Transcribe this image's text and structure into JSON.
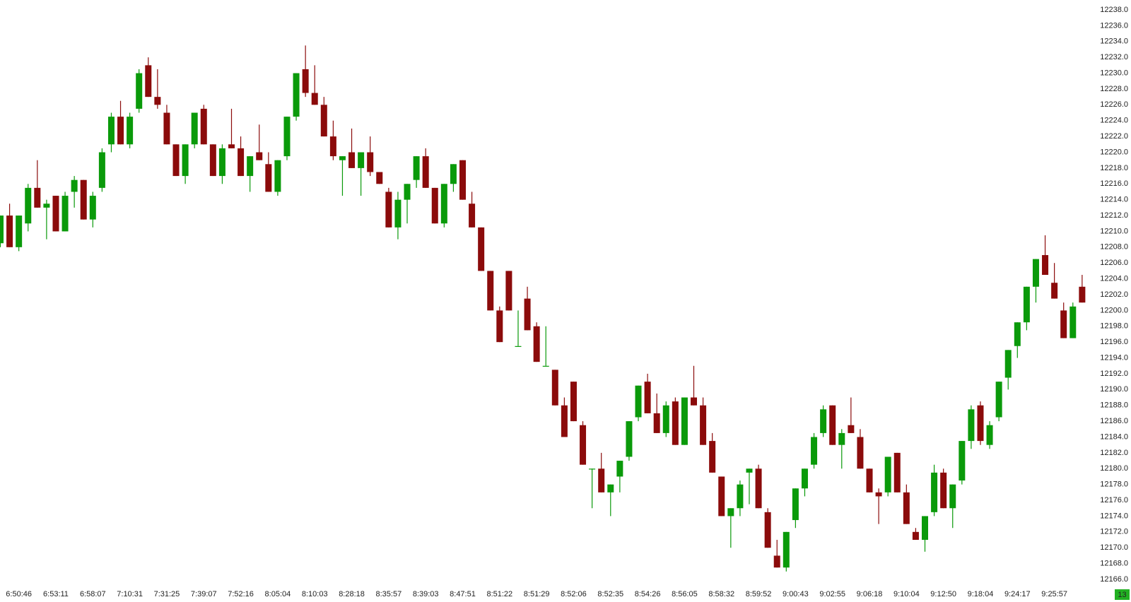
{
  "chart_data": {
    "type": "candlestick",
    "up_color": "#0a9a0a",
    "down_color": "#8b0b0b",
    "badge": "13",
    "badge_color": "#22b022",
    "categories": [
      null,
      null,
      "6:50:46",
      null,
      null,
      null,
      "6:53:11",
      null,
      null,
      null,
      "6:58:07",
      null,
      null,
      null,
      "7:10:31",
      null,
      null,
      null,
      "7:31:25",
      null,
      null,
      null,
      "7:39:07",
      null,
      null,
      null,
      "7:52:16",
      null,
      null,
      null,
      "8:05:04",
      null,
      null,
      null,
      "8:10:03",
      null,
      null,
      null,
      "8:28:18",
      null,
      null,
      null,
      "8:35:57",
      null,
      null,
      null,
      "8:39:03",
      null,
      null,
      null,
      "8:47:51",
      null,
      null,
      null,
      "8:51:22",
      null,
      null,
      null,
      "8:51:29",
      null,
      null,
      null,
      "8:52:06",
      null,
      null,
      null,
      "8:52:35",
      null,
      null,
      null,
      "8:54:26",
      null,
      null,
      null,
      "8:56:05",
      null,
      null,
      null,
      "8:58:32",
      null,
      null,
      null,
      "8:59:52",
      null,
      null,
      null,
      "9:00:43",
      null,
      null,
      null,
      "9:02:55",
      null,
      null,
      null,
      "9:06:18",
      null,
      null,
      null,
      "9:10:04",
      null,
      null,
      null,
      "9:12:50",
      null,
      null,
      null,
      "9:18:04",
      null,
      null,
      null,
      "9:24:17",
      null,
      null,
      null,
      "9:25:57",
      null,
      null,
      null
    ],
    "open": [
      12208.5,
      12212,
      12208,
      12211,
      12215.5,
      12213,
      12214.5,
      12210,
      12215,
      12216.5,
      12211.5,
      12215.5,
      12221,
      12224.5,
      12221,
      12225.5,
      12231,
      12227,
      12225,
      12221,
      12217,
      12221,
      12225.5,
      12221,
      12217,
      12221,
      12220.5,
      12217,
      12220,
      12218.5,
      12215,
      12219.5,
      12224.5,
      12230.5,
      12227.5,
      12226,
      12222,
      12219,
      12220,
      12218,
      12220,
      12217.5,
      12215,
      12210.5,
      12214,
      12216.5,
      12219.5,
      12215.5,
      12211,
      12216,
      12219,
      12213.5,
      12210.5,
      12205,
      12200,
      12205,
      12195.5,
      12201.5,
      12198,
      12193,
      12192.5,
      12188,
      12191,
      12185.5,
      12180,
      12180,
      12177,
      12179,
      12181.5,
      12186.5,
      12191,
      12187,
      12184.5,
      12188.5,
      12183,
      12189,
      12188,
      12183.5,
      12179,
      12174,
      12175,
      12179.5,
      12180,
      12174.5,
      12169,
      12167.5,
      12173.5,
      12177.5,
      12180.5,
      12184.5,
      12188,
      12183,
      12185.5,
      12184,
      12180,
      12177,
      12177,
      12182,
      12177,
      12172,
      12171,
      12174.5,
      12179.5,
      12175,
      12178.5,
      12183.5,
      12188,
      12183,
      12186.5,
      12191.5,
      12195.5,
      12198.5,
      12203,
      12207,
      12203.5,
      12200,
      12196.5,
      12203
    ],
    "high": [
      12212,
      12213.5,
      12212,
      12216,
      12219,
      12214,
      12214.5,
      12215,
      12217,
      12216.5,
      12215,
      12220.5,
      12225,
      12226.5,
      12225,
      12230.5,
      12232,
      12230.5,
      12226,
      12221,
      12221,
      12225,
      12226,
      12221,
      12221,
      12225.5,
      12222,
      12219.5,
      12223.5,
      12220,
      12219,
      12224.5,
      12230,
      12233.5,
      12231,
      12227,
      12224,
      12219.5,
      12223,
      12220,
      12222,
      12217.5,
      12215.5,
      12215,
      12216,
      12219.5,
      12220.5,
      12215.5,
      12216,
      12218.5,
      12219,
      12215,
      12210.5,
      12205,
      12200.5,
      12205,
      12200,
      12203,
      12198.5,
      12198,
      12192.5,
      12189,
      12191,
      12186,
      12180,
      12182,
      12178,
      12181,
      12186,
      12190.5,
      12192,
      12189.5,
      12188.5,
      12189,
      12189,
      12193,
      12189,
      12184.5,
      12179,
      12175,
      12178.5,
      12180,
      12180.5,
      12175,
      12171,
      12172,
      12177.5,
      12180,
      12184.5,
      12188,
      12188,
      12185,
      12189,
      12185,
      12180,
      12177.5,
      12181.5,
      12182,
      12178,
      12172.5,
      12174,
      12180.5,
      12180,
      12178,
      12183.5,
      12188,
      12188.5,
      12186,
      12191,
      12195,
      12198.5,
      12203,
      12206.5,
      12209.5,
      12206,
      12201,
      12201,
      12204.5
    ],
    "low": [
      12208,
      12208,
      12207.5,
      12210,
      12213,
      12209,
      12210,
      12210,
      12213,
      12211.5,
      12210.5,
      12215,
      12220,
      12221,
      12220.5,
      12225,
      12227,
      12225.5,
      12221,
      12217,
      12216,
      12220.5,
      12221,
      12217,
      12216,
      12220.5,
      12217,
      12215,
      12219,
      12215,
      12214.5,
      12219,
      12224,
      12227,
      12226,
      12222,
      12219,
      12214.5,
      12218,
      12214.5,
      12217,
      12216,
      12210.5,
      12209,
      12211,
      12215.5,
      12215.5,
      12211,
      12210.5,
      12215,
      12214,
      12210.5,
      12205,
      12200,
      12196,
      12200,
      12195.5,
      12197.5,
      12193.5,
      12193,
      12188,
      12184,
      12186,
      12180.5,
      12175,
      12177,
      12174,
      12177,
      12181,
      12186,
      12187,
      12184.5,
      12184,
      12183,
      12183,
      12188,
      12183,
      12179.5,
      12174,
      12170,
      12174,
      12175.5,
      12175,
      12170,
      12167.5,
      12167,
      12172.5,
      12176.5,
      12180,
      12184,
      12183,
      12180,
      12184.5,
      12180,
      12177,
      12173,
      12176.5,
      12177,
      12173,
      12171,
      12169.5,
      12174,
      12175,
      12172.5,
      12178,
      12182.5,
      12183,
      12182.5,
      12186,
      12190,
      12194,
      12197.5,
      12201,
      12204.5,
      12201.5,
      12196.5,
      12196.5,
      12201
    ],
    "close": [
      12212,
      12208,
      12212,
      12215.5,
      12213,
      12213.5,
      12210,
      12214.5,
      12216.5,
      12211.5,
      12214.5,
      12220,
      12224.5,
      12221,
      12224.5,
      12230,
      12227,
      12226,
      12221,
      12217,
      12221,
      12225,
      12221,
      12217,
      12220.5,
      12220.5,
      12217,
      12219.5,
      12219,
      12215,
      12219,
      12224.5,
      12230,
      12227.5,
      12226,
      12222,
      12219.5,
      12219.5,
      12218,
      12220,
      12217.5,
      12216,
      12210.5,
      12214,
      12216,
      12219.5,
      12215.5,
      12211,
      12216,
      12218.5,
      12214,
      12210.5,
      12205,
      12200,
      12196,
      12200,
      12195.5,
      12197.5,
      12193.5,
      12193,
      12188,
      12184,
      12186,
      12180.5,
      12180,
      12177,
      12178,
      12181,
      12186,
      12190.5,
      12187,
      12184.5,
      12188,
      12183,
      12189,
      12188,
      12183,
      12179.5,
      12174,
      12175,
      12178,
      12180,
      12175,
      12170,
      12167.5,
      12172,
      12177.5,
      12180,
      12184,
      12187.5,
      12183,
      12184.5,
      12184.5,
      12180,
      12177,
      12176.5,
      12181.5,
      12177,
      12173,
      12171,
      12174,
      12179.5,
      12175,
      12178,
      12183.5,
      12187.5,
      12183.5,
      12185.5,
      12191,
      12195,
      12198.5,
      12203,
      12206.5,
      12204.5,
      12201.5,
      12196.5,
      12200.5,
      12201
    ],
    "ylim": [
      12166,
      12238
    ],
    "yticks": [
      {
        "value": 12166,
        "label": "12166.0"
      },
      {
        "value": 12168,
        "label": "12168.0"
      },
      {
        "value": 12170,
        "label": "12170.0"
      },
      {
        "value": 12172,
        "label": "12172.0"
      },
      {
        "value": 12174,
        "label": "12174.0"
      },
      {
        "value": 12176,
        "label": "12176.0"
      },
      {
        "value": 12178,
        "label": "12178.0"
      },
      {
        "value": 12180,
        "label": "12180.0"
      },
      {
        "value": 12182,
        "label": "12182.0"
      },
      {
        "value": 12184,
        "label": "12184.0"
      },
      {
        "value": 12186,
        "label": "12186.0"
      },
      {
        "value": 12188,
        "label": "12188.0"
      },
      {
        "value": 12190,
        "label": "12190.0"
      },
      {
        "value": 12192,
        "label": "12192.0"
      },
      {
        "value": 12194,
        "label": "12194.0"
      },
      {
        "value": 12196,
        "label": "12196.0"
      },
      {
        "value": 12198,
        "label": "12198.0"
      },
      {
        "value": 12200,
        "label": "12200.0"
      },
      {
        "value": 12202,
        "label": "12202.0"
      },
      {
        "value": 12204,
        "label": "12204.0"
      },
      {
        "value": 12206,
        "label": "12206.0"
      },
      {
        "value": 12208,
        "label": "12208.0"
      },
      {
        "value": 12210,
        "label": "12210.0"
      },
      {
        "value": 12212,
        "label": "12212.0"
      },
      {
        "value": 12214,
        "label": "12214.0"
      },
      {
        "value": 12216,
        "label": "12216.0"
      },
      {
        "value": 12218,
        "label": "12218.0"
      },
      {
        "value": 12220,
        "label": "12220.0"
      },
      {
        "value": 12222,
        "label": "12222.0"
      },
      {
        "value": 12224,
        "label": "12224.0"
      },
      {
        "value": 12226,
        "label": "12226.0"
      },
      {
        "value": 12228,
        "label": "12228.0"
      },
      {
        "value": 12230,
        "label": "12230.0"
      },
      {
        "value": 12232,
        "label": "12232.0"
      },
      {
        "value": 12234,
        "label": "12234.0"
      },
      {
        "value": 12236,
        "label": "12236.0"
      },
      {
        "value": 12238,
        "label": "12238.0"
      }
    ]
  }
}
